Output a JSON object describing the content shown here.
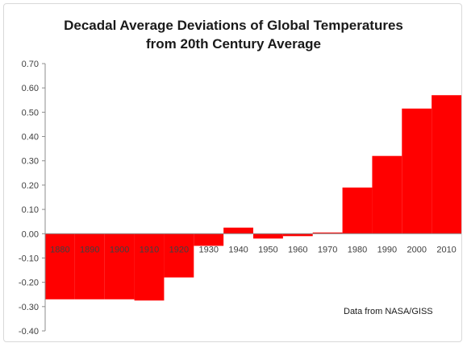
{
  "chart_data": {
    "type": "bar",
    "title_line1": "Decadal Average Deviations of Global Temperatures",
    "title_line2": "from 20th Century Average",
    "categories": [
      "1880",
      "1890",
      "1900",
      "1910",
      "1920",
      "1930",
      "1940",
      "1950",
      "1960",
      "1970",
      "1980",
      "1990",
      "2000",
      "2010"
    ],
    "values": [
      -0.27,
      -0.27,
      -0.27,
      -0.275,
      -0.18,
      -0.05,
      0.025,
      -0.02,
      -0.01,
      0.005,
      0.19,
      0.32,
      0.515,
      0.57
    ],
    "ylim": [
      -0.4,
      0.7
    ],
    "yticks": [
      "0.70",
      "0.60",
      "0.50",
      "0.40",
      "0.30",
      "0.20",
      "0.10",
      "0.00",
      "-0.10",
      "-0.20",
      "-0.30",
      "-0.40"
    ],
    "ytick_values": [
      0.7,
      0.6,
      0.5,
      0.4,
      0.3,
      0.2,
      0.1,
      0.0,
      -0.1,
      -0.2,
      -0.3,
      -0.4
    ],
    "annotation": "Data from NASA/GISS",
    "bar_color": "#ff0000",
    "grid": false,
    "legend": "none"
  }
}
